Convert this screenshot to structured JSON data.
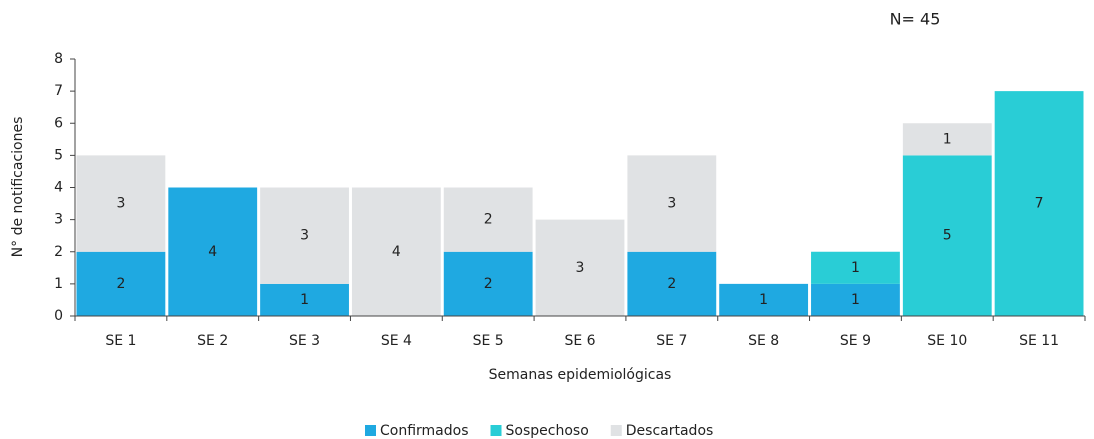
{
  "chart_data": {
    "type": "stacked_bar",
    "annotation": "N= 45",
    "y_label": "N° de notificaciones",
    "x_label": "Semanas epidemiológicas",
    "categories": [
      "SE 1",
      "SE 2",
      "SE 3",
      "SE 4",
      "SE 5",
      "SE 6",
      "SE 7",
      "SE 8",
      "SE 9",
      "SE 10",
      "SE 11"
    ],
    "series": [
      {
        "name": "Confirmados",
        "color": "#1fa9e1",
        "values": [
          2,
          4,
          1,
          0,
          2,
          0,
          2,
          1,
          1,
          0,
          0
        ]
      },
      {
        "name": "Sospechoso",
        "color": "#29cdd6",
        "values": [
          0,
          0,
          0,
          0,
          0,
          0,
          0,
          0,
          1,
          5,
          7
        ]
      },
      {
        "name": "Descartados",
        "color": "#e0e2e4",
        "values": [
          3,
          0,
          3,
          4,
          2,
          3,
          3,
          0,
          0,
          1,
          0
        ]
      }
    ],
    "ylim": [
      0,
      8
    ],
    "yticks": [
      0,
      1,
      2,
      3,
      4,
      5,
      6,
      7,
      8
    ]
  }
}
